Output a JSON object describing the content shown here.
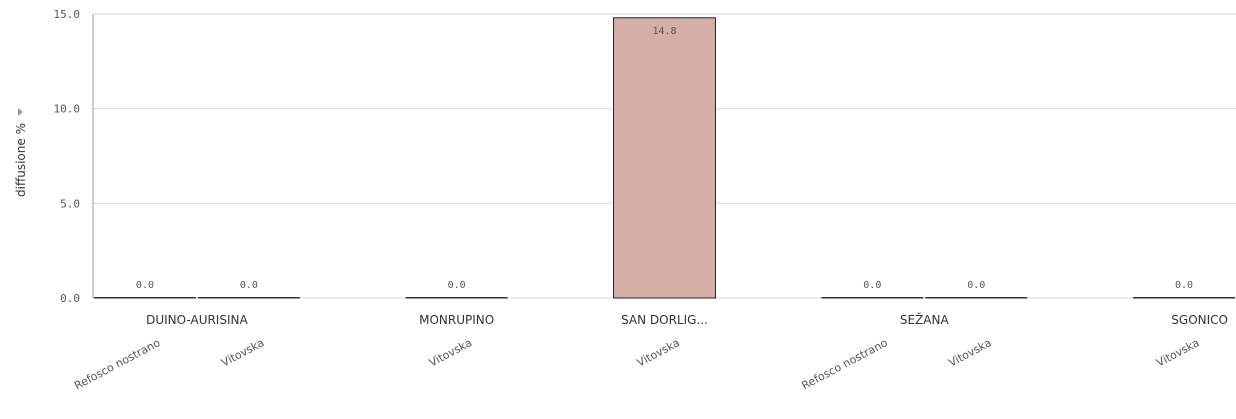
{
  "chart_data": {
    "type": "bar",
    "ylabel": "diffusione %",
    "ylim": [
      0,
      15
    ],
    "yticks": [
      "0.0",
      "5.0",
      "10.0",
      "15.0"
    ],
    "colors": {
      "bar": "#d6aea8",
      "bar_stroke": "#222222",
      "zero_bar": "#333333"
    },
    "groups": [
      {
        "label": "DUINO-AURISINA",
        "bars": [
          {
            "category": "Refosco nostrano",
            "value": 0.0,
            "value_label": "0.0"
          },
          {
            "category": "Vitovska",
            "value": 0.0,
            "value_label": "0.0"
          }
        ]
      },
      {
        "label": "MONRUPINO",
        "bars": [
          {
            "category": "Vitovska",
            "value": 0.0,
            "value_label": "0.0"
          }
        ]
      },
      {
        "label": "SAN DORLIG...",
        "bars": [
          {
            "category": "Vitovska",
            "value": 14.8,
            "value_label": "14.8"
          }
        ]
      },
      {
        "label": "SEŽANA",
        "bars": [
          {
            "category": "Refosco nostrano",
            "value": 0.0,
            "value_label": "0.0"
          },
          {
            "category": "Vitovska",
            "value": 0.0,
            "value_label": "0.0"
          }
        ]
      },
      {
        "label": "SGONICO",
        "bars": [
          {
            "category": "Vitovska",
            "value": 0.0,
            "value_label": "0.0"
          }
        ]
      }
    ]
  }
}
